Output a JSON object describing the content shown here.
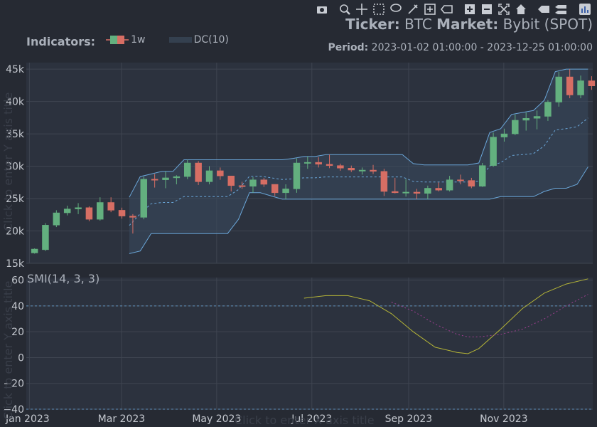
{
  "colors": {
    "background": "#262a33",
    "plot_bg": "#2c323e",
    "grid": "#3f4551",
    "increasing": "#63b07f",
    "decreasing": "#d76e64",
    "donchian": "#6aa6d8",
    "smi": "#b4b437",
    "smi_signal": "#9b3f8f",
    "text": "#aab0ba",
    "ghost_text": "#3a3f4a"
  },
  "header": {
    "ticker_label": "Ticker:",
    "ticker_value": "BTC",
    "market_label": "Market:",
    "market_value": "Bybit (SPOT)",
    "period_label": "Period:",
    "period_value": "2023-01-02 01:00:00 - 2023-12-25 01:00:00"
  },
  "legend": {
    "title": "Indicators:",
    "items": [
      "1w",
      "DC(10)"
    ]
  },
  "modebar": {
    "icons": [
      "camera-icon",
      "zoom-icon",
      "pan-icon",
      "box-select-icon",
      "lasso-icon",
      "draw-line-icon",
      "draw-rect-icon",
      "eraser-icon",
      "zoom-in-icon",
      "zoom-out-icon",
      "autoscale-icon",
      "home-icon",
      "spike-lines-icon",
      "compare-icon",
      "plotly-logo-icon"
    ]
  },
  "ghost_titles": {
    "y1": "Click to enter Y axis title",
    "y2": "Click to enter Y axis title",
    "x": "Click to enter X axis title"
  },
  "chart_data": [
    {
      "type": "candlestick",
      "name": "1w",
      "x": [
        "2023-01-02",
        "2023-01-09",
        "2023-01-16",
        "2023-01-23",
        "2023-01-30",
        "2023-02-06",
        "2023-02-13",
        "2023-02-20",
        "2023-02-27",
        "2023-03-06",
        "2023-03-13",
        "2023-03-20",
        "2023-03-27",
        "2023-04-03",
        "2023-04-10",
        "2023-04-17",
        "2023-04-24",
        "2023-05-01",
        "2023-05-08",
        "2023-05-15",
        "2023-05-22",
        "2023-05-29",
        "2023-06-05",
        "2023-06-12",
        "2023-06-19",
        "2023-06-26",
        "2023-07-03",
        "2023-07-10",
        "2023-07-17",
        "2023-07-24",
        "2023-07-31",
        "2023-08-07",
        "2023-08-14",
        "2023-08-21",
        "2023-08-28",
        "2023-09-04",
        "2023-09-11",
        "2023-09-18",
        "2023-09-25",
        "2023-10-02",
        "2023-10-09",
        "2023-10-16",
        "2023-10-23",
        "2023-10-30",
        "2023-11-06",
        "2023-11-13",
        "2023-11-20",
        "2023-11-27",
        "2023-12-04",
        "2023-12-11",
        "2023-12-18",
        "2023-12-25"
      ],
      "open": [
        16600,
        17100,
        20900,
        22800,
        23400,
        23600,
        21800,
        24400,
        23200,
        22300,
        22100,
        28000,
        27900,
        28200,
        28400,
        30500,
        27600,
        29300,
        28500,
        27000,
        26900,
        27900,
        27200,
        25900,
        26500,
        30500,
        30600,
        30300,
        30100,
        29700,
        29400,
        29400,
        29200,
        26100,
        25900,
        26000,
        25800,
        26600,
        26300,
        27900,
        27800,
        26900,
        30100,
        34500,
        35000,
        37100,
        37400,
        37700,
        39900,
        43800,
        41000,
        43200
      ],
      "close": [
        17200,
        20900,
        22800,
        23400,
        23600,
        21800,
        24400,
        23200,
        22300,
        22100,
        28000,
        27900,
        28200,
        28400,
        30500,
        27600,
        29300,
        28500,
        27000,
        26900,
        27900,
        27200,
        25900,
        26500,
        30500,
        30600,
        30300,
        30100,
        29700,
        29400,
        29400,
        29200,
        26100,
        25900,
        26000,
        25800,
        26600,
        26300,
        27900,
        27800,
        26900,
        30100,
        34500,
        35000,
        37100,
        37400,
        37700,
        39900,
        43800,
        41000,
        43200,
        42400
      ],
      "high": [
        17300,
        21200,
        23200,
        23900,
        24300,
        23800,
        25200,
        25200,
        23600,
        22600,
        28400,
        28800,
        29200,
        28600,
        31000,
        30800,
        30000,
        29800,
        28500,
        27600,
        28300,
        28200,
        27200,
        27200,
        31200,
        31500,
        31400,
        31800,
        30400,
        30100,
        29800,
        30200,
        29600,
        28200,
        28000,
        26500,
        27000,
        27500,
        28500,
        28700,
        28200,
        30500,
        35200,
        35800,
        38000,
        38300,
        38600,
        40200,
        44600,
        45000,
        44000,
        43900
      ],
      "low": [
        16500,
        16900,
        20600,
        22400,
        22600,
        21500,
        21600,
        22900,
        21900,
        19600,
        21800,
        26700,
        26600,
        27200,
        28000,
        27100,
        27200,
        27900,
        26100,
        26500,
        25900,
        26800,
        25400,
        24900,
        25900,
        29600,
        29800,
        29700,
        29300,
        29100,
        28700,
        28800,
        25400,
        25800,
        25300,
        24900,
        24900,
        26100,
        26100,
        27200,
        26600,
        26800,
        29900,
        33800,
        34800,
        35500,
        35700,
        37000,
        39200,
        40500,
        40500,
        41800
      ]
    },
    {
      "type": "line",
      "name": "DC(10)",
      "x": [
        "2023-03-06",
        "2023-03-13",
        "2023-03-20",
        "2023-03-27",
        "2023-04-03",
        "2023-04-10",
        "2023-04-17",
        "2023-04-24",
        "2023-05-01",
        "2023-05-08",
        "2023-05-15",
        "2023-05-22",
        "2023-05-29",
        "2023-06-05",
        "2023-06-12",
        "2023-06-19",
        "2023-06-26",
        "2023-07-03",
        "2023-07-10",
        "2023-07-17",
        "2023-07-24",
        "2023-07-31",
        "2023-08-07",
        "2023-08-14",
        "2023-08-21",
        "2023-08-28",
        "2023-09-04",
        "2023-09-11",
        "2023-09-18",
        "2023-09-25",
        "2023-10-02",
        "2023-10-09",
        "2023-10-16",
        "2023-10-23",
        "2023-10-30",
        "2023-11-06",
        "2023-11-13",
        "2023-11-20",
        "2023-11-27",
        "2023-12-04",
        "2023-12-11",
        "2023-12-18",
        "2023-12-25"
      ],
      "upper": [
        25200,
        28400,
        28800,
        29200,
        29200,
        31000,
        31000,
        31000,
        31000,
        31000,
        31000,
        31000,
        31000,
        31000,
        31000,
        31200,
        31500,
        31500,
        31800,
        31800,
        31800,
        31800,
        31800,
        31800,
        31800,
        31800,
        30400,
        30200,
        30200,
        30200,
        30200,
        30200,
        30500,
        35200,
        35800,
        38000,
        38300,
        38600,
        40200,
        44600,
        45000,
        45000,
        45000
      ],
      "lower": [
        16500,
        16900,
        19600,
        19600,
        19600,
        19600,
        19600,
        19600,
        19600,
        19600,
        21800,
        25900,
        25900,
        25400,
        24900,
        24900,
        24900,
        24900,
        24900,
        24900,
        24900,
        24900,
        24900,
        24900,
        24900,
        24900,
        24900,
        24900,
        24900,
        24900,
        24900,
        24900,
        24900,
        24900,
        25300,
        25300,
        25300,
        25300,
        26100,
        26600,
        26600,
        27200,
        29900
      ],
      "middle": [
        20850,
        22650,
        24200,
        24400,
        24400,
        25300,
        25300,
        25300,
        25300,
        25300,
        26400,
        28450,
        28450,
        28200,
        27950,
        28050,
        28200,
        28200,
        28350,
        28350,
        28350,
        28350,
        28350,
        28350,
        28350,
        28350,
        27650,
        27550,
        27550,
        27550,
        27550,
        27550,
        27700,
        30050,
        30550,
        31650,
        31800,
        31950,
        33150,
        35600,
        35800,
        36100,
        37450
      ]
    },
    {
      "type": "line",
      "name": "SMI(14, 3, 3)",
      "x": [
        "2023-06-26",
        "2023-07-10",
        "2023-07-24",
        "2023-08-07",
        "2023-08-21",
        "2023-09-04",
        "2023-09-18",
        "2023-10-02",
        "2023-10-09",
        "2023-10-16",
        "2023-10-30",
        "2023-11-13",
        "2023-11-27",
        "2023-12-11",
        "2023-12-25"
      ],
      "smi": [
        46,
        48,
        48,
        44,
        34,
        20,
        8,
        4,
        3,
        7,
        22,
        38,
        50,
        57,
        61
      ],
      "signal": [
        null,
        null,
        null,
        null,
        43,
        36,
        26,
        18,
        16,
        16,
        18,
        22,
        30,
        40,
        49
      ],
      "ylim": [
        -40,
        62
      ],
      "hlines": [
        40,
        -40
      ]
    }
  ],
  "axes": {
    "x_ticks": [
      {
        "date": "2023-01-01",
        "label": "Jan 2023"
      },
      {
        "date": "2023-03-01",
        "label": "Mar 2023"
      },
      {
        "date": "2023-05-01",
        "label": "May 2023"
      },
      {
        "date": "2023-07-01",
        "label": "Jul 2023"
      },
      {
        "date": "2023-09-01",
        "label": "Sep 2023"
      },
      {
        "date": "2023-11-01",
        "label": "Nov 2023"
      }
    ],
    "x_range": [
      "2022-12-30",
      "2023-12-28"
    ],
    "y1_range": [
      15000,
      46000
    ],
    "y1_ticks": [
      {
        "value": 15000,
        "label": "15k"
      },
      {
        "value": 20000,
        "label": "20k"
      },
      {
        "value": 25000,
        "label": "25k"
      },
      {
        "value": 30000,
        "label": "30k"
      },
      {
        "value": 35000,
        "label": "35k"
      },
      {
        "value": 40000,
        "label": "40k"
      },
      {
        "value": 45000,
        "label": "45k"
      }
    ],
    "y2_ticks": [
      {
        "value": 60,
        "label": "60"
      },
      {
        "value": 40,
        "label": "40"
      },
      {
        "value": 20,
        "label": "20"
      },
      {
        "value": 0,
        "label": "0"
      },
      {
        "value": -20,
        "label": "−20"
      },
      {
        "value": -40,
        "label": "−40"
      }
    ]
  }
}
